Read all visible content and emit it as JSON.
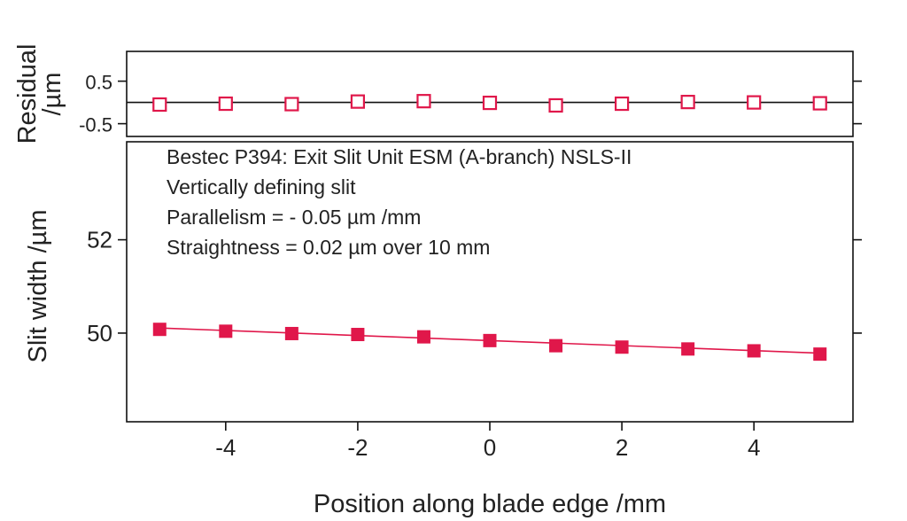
{
  "chart_data": [
    {
      "type": "scatter",
      "panel": "residual",
      "ylabel": [
        "Residual",
        "/µm"
      ],
      "ylim": [
        -0.8,
        1.2
      ],
      "yticks": [
        0.5,
        -0.5
      ],
      "ytick_labels": [
        "0.5",
        "-0.5"
      ],
      "xlim": [
        -5.5,
        5.5
      ],
      "reference_line": 0,
      "marker": "open-square",
      "color": "#e0174a",
      "x": [
        -5,
        -4,
        -3,
        -2,
        -1,
        0,
        1,
        2,
        3,
        4,
        5
      ],
      "y": [
        -0.05,
        -0.03,
        -0.04,
        0.02,
        0.03,
        -0.01,
        -0.07,
        -0.03,
        0.01,
        0.0,
        -0.02
      ]
    },
    {
      "type": "scatter",
      "panel": "slit-width",
      "xlabel": "Position along blade edge /mm",
      "ylabel": "Slit width /µm",
      "xlim": [
        -5.5,
        5.5
      ],
      "ylim": [
        48.1,
        54.1
      ],
      "xticks": [
        -4,
        -2,
        0,
        2,
        4
      ],
      "xtick_labels": [
        "-4",
        "-2",
        "0",
        "2",
        "4"
      ],
      "yticks": [
        52,
        50
      ],
      "ytick_labels": [
        "52",
        "50"
      ],
      "marker": "filled-square",
      "color": "#e0174a",
      "x": [
        -5,
        -4,
        -3,
        -2,
        -1,
        0,
        1,
        2,
        3,
        4,
        5
      ],
      "y": [
        50.08,
        50.04,
        49.99,
        49.97,
        49.92,
        49.84,
        49.73,
        49.7,
        49.66,
        49.62,
        49.55
      ],
      "fit_line": {
        "x": [
          -5,
          5
        ],
        "y": [
          50.11,
          49.57
        ]
      },
      "annotations": [
        "Bestec P394: Exit Slit Unit ESM (A-branch) NSLS-II",
        "Vertically defining slit",
        "Parallelism = - 0.05 µm /mm",
        "Straightness = 0.02 µm over 10 mm"
      ]
    }
  ]
}
